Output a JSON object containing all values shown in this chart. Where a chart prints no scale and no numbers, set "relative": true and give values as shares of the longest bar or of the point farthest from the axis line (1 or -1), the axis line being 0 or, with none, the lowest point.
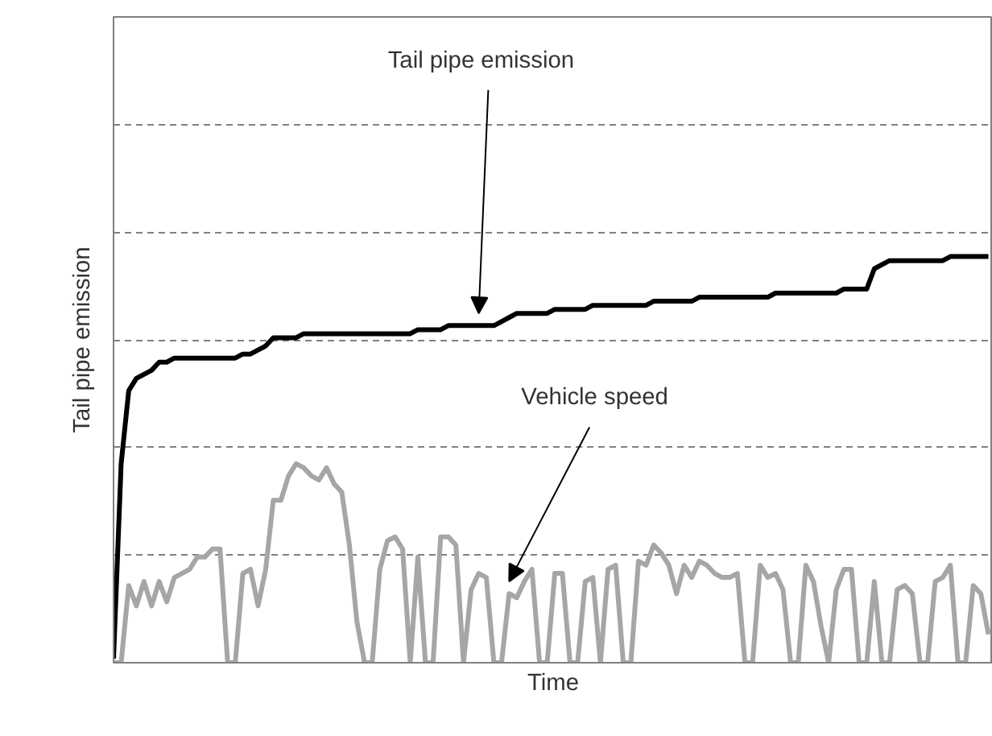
{
  "chart_data": {
    "type": "line",
    "relative": true,
    "xlabel": "Time",
    "ylabel": "Tail pipe emission",
    "categories": [
      null,
      null,
      null,
      null,
      null,
      null,
      null,
      null,
      null,
      null,
      null,
      null,
      null,
      null,
      null,
      null,
      null,
      null,
      null,
      null,
      null,
      null,
      null,
      null,
      null,
      null,
      null,
      null,
      null,
      null,
      null,
      null,
      null,
      null,
      null,
      null,
      null,
      null,
      null,
      null,
      null,
      null,
      null,
      null,
      null,
      null,
      null,
      null,
      null,
      null,
      null,
      null,
      null,
      null,
      null,
      null,
      null,
      null,
      null,
      null,
      null,
      null,
      null,
      null,
      null,
      null,
      null,
      null,
      null,
      null,
      null,
      null,
      null,
      null,
      null,
      null,
      null,
      null,
      null,
      null,
      null,
      null,
      null,
      null,
      null,
      null,
      null,
      null,
      null,
      null,
      null,
      null,
      null,
      null,
      null,
      null,
      null,
      null,
      null,
      null,
      null,
      null,
      null,
      null,
      null,
      null,
      null,
      null,
      null,
      null,
      null,
      null,
      null,
      null,
      null,
      null
    ],
    "series": [
      {
        "color": "#000000",
        "values": [
          0.01,
          0.49,
          0.67,
          0.7,
          0.71,
          0.72,
          0.74,
          0.74,
          0.75,
          0.75,
          0.75,
          0.75,
          0.75,
          0.75,
          0.75,
          0.75,
          0.75,
          0.76,
          0.76,
          0.77,
          0.78,
          0.8,
          0.8,
          0.8,
          0.8,
          0.81,
          0.81,
          0.81,
          0.81,
          0.81,
          0.81,
          0.81,
          0.81,
          0.81,
          0.81,
          0.81,
          0.81,
          0.81,
          0.81,
          0.81,
          0.82,
          0.82,
          0.82,
          0.82,
          0.83,
          0.83,
          0.83,
          0.83,
          0.83,
          0.83,
          0.83,
          0.84,
          0.85,
          0.86,
          0.86,
          0.86,
          0.86,
          0.86,
          0.87,
          0.87,
          0.87,
          0.87,
          0.87,
          0.88,
          0.88,
          0.88,
          0.88,
          0.88,
          0.88,
          0.88,
          0.88,
          0.89,
          0.89,
          0.89,
          0.89,
          0.89,
          0.89,
          0.9,
          0.9,
          0.9,
          0.9,
          0.9,
          0.9,
          0.9,
          0.9,
          0.9,
          0.9,
          0.91,
          0.91,
          0.91,
          0.91,
          0.91,
          0.91,
          0.91,
          0.91,
          0.91,
          0.92,
          0.92,
          0.92,
          0.92,
          0.97,
          0.98,
          0.99,
          0.99,
          0.99,
          0.99,
          0.99,
          0.99,
          0.99,
          0.99,
          1.0,
          1.0,
          1.0,
          1.0,
          1.0,
          1.0
        ]
      },
      {
        "color": "#a6a6a6",
        "values": [
          0,
          0,
          0.19,
          0.14,
          0.2,
          0.14,
          0.2,
          0.15,
          0.21,
          0.22,
          0.23,
          0.26,
          0.26,
          0.28,
          0.28,
          0,
          0,
          0.22,
          0.23,
          0.14,
          0.23,
          0.4,
          0.4,
          0.46,
          0.49,
          0.48,
          0.46,
          0.45,
          0.48,
          0.44,
          0.42,
          0.29,
          0.1,
          0,
          0,
          0.23,
          0.3,
          0.31,
          0.28,
          0,
          0.26,
          0,
          0,
          0.31,
          0.31,
          0.29,
          0,
          0.18,
          0.22,
          0.21,
          0,
          0,
          0.17,
          0.16,
          0.2,
          0.23,
          0,
          0,
          0.22,
          0.22,
          0,
          0,
          0.2,
          0.21,
          0,
          0.23,
          0.24,
          0,
          0,
          0.25,
          0.24,
          0.29,
          0.27,
          0.24,
          0.17,
          0.24,
          0.21,
          0.25,
          0.24,
          0.22,
          0.21,
          0.21,
          0.22,
          0,
          0,
          0.24,
          0.21,
          0.22,
          0.18,
          0,
          0,
          0.24,
          0.2,
          0.09,
          0,
          0.18,
          0.23,
          0.23,
          0,
          0,
          0.2,
          0,
          0,
          0.18,
          0.19,
          0.17,
          0,
          0,
          0.2,
          0.21,
          0.24,
          0,
          0,
          0.19,
          0.17,
          0.07
        ]
      }
    ],
    "annotations": [
      "Tail pipe emission",
      "Vehicle speed"
    ],
    "grid": "y"
  }
}
